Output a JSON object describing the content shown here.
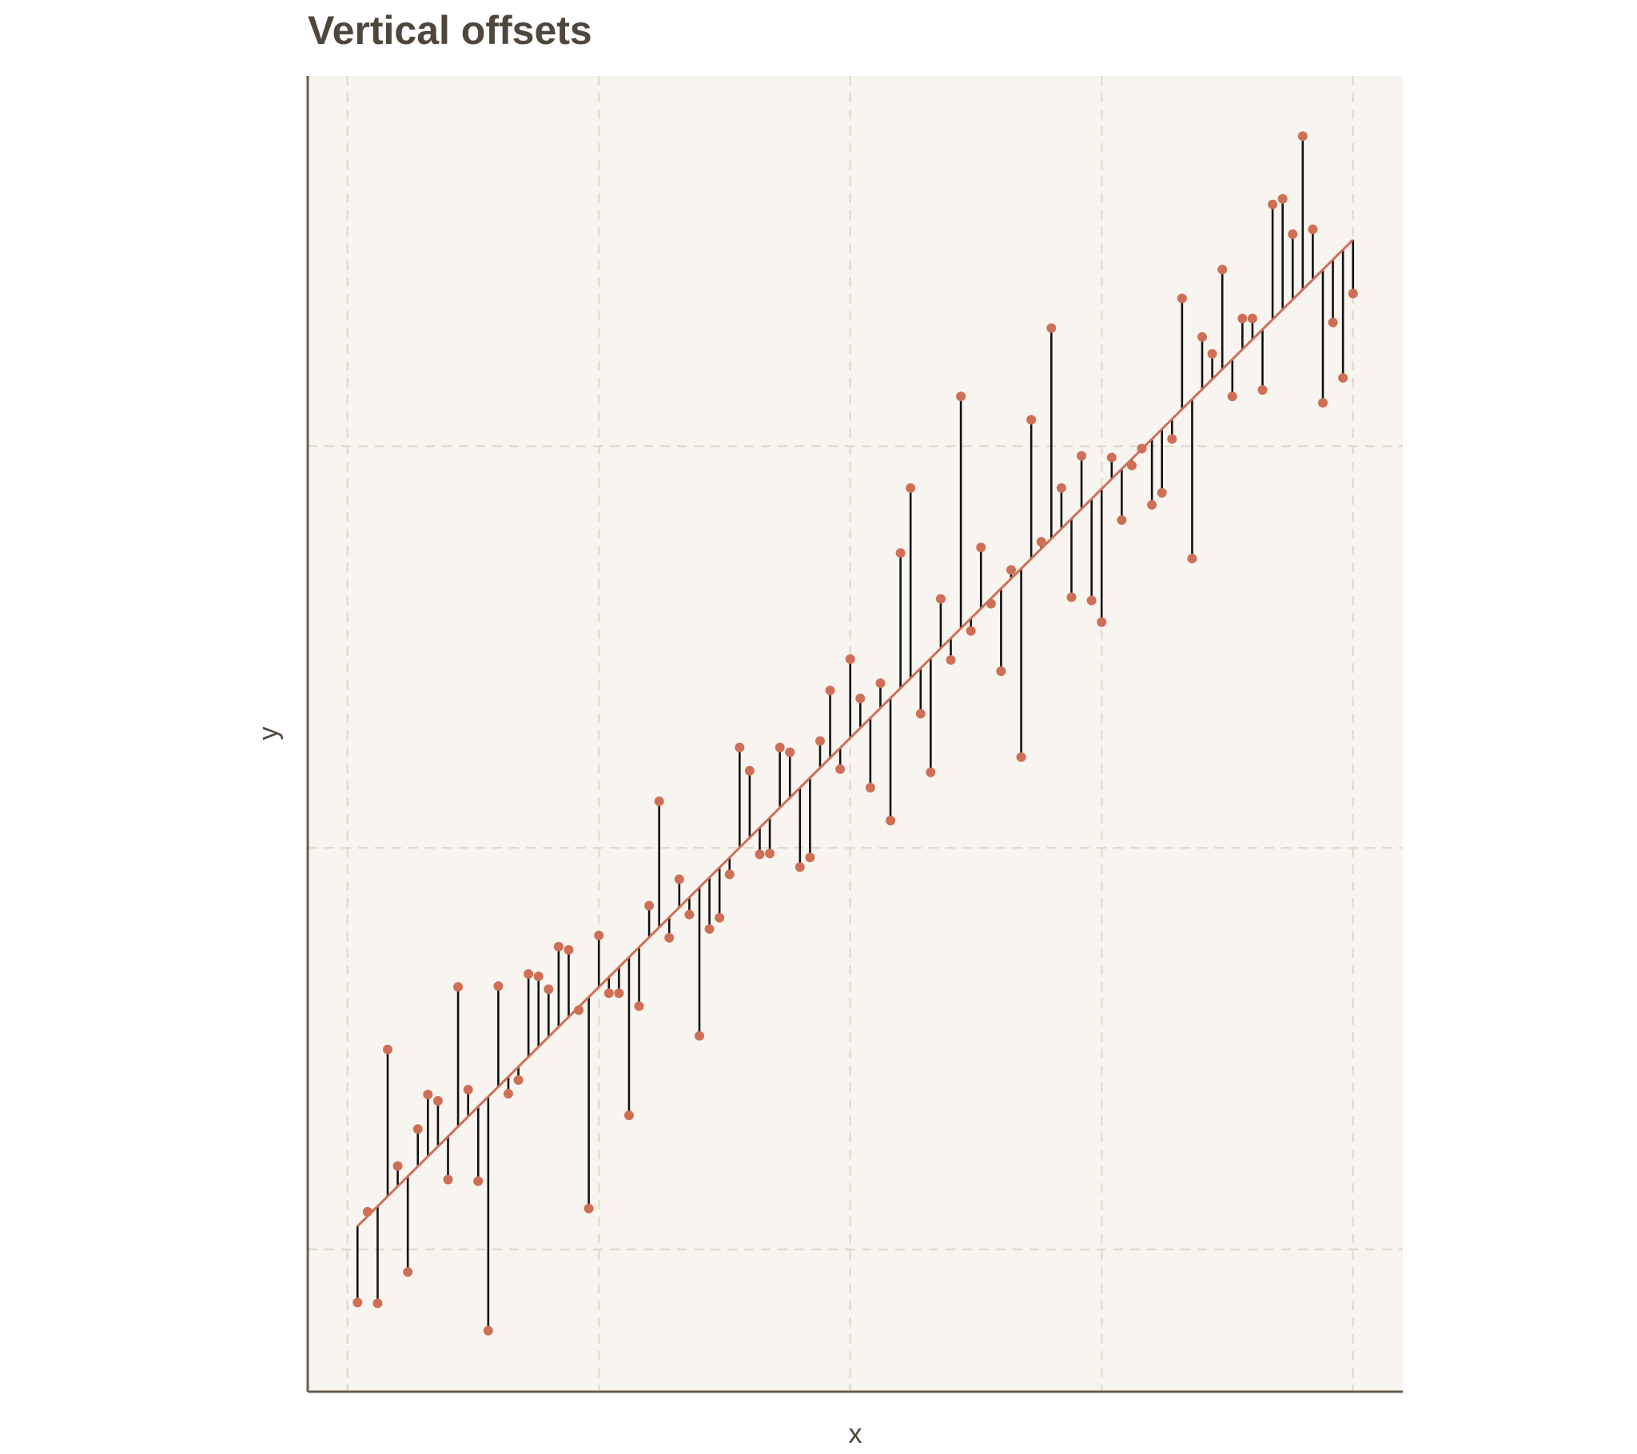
{
  "chart_data": {
    "type": "scatter",
    "title": "Vertical offsets",
    "xlabel": "x",
    "ylabel": "y",
    "x": [
      1,
      2,
      3,
      4,
      5,
      6,
      7,
      8,
      9,
      10,
      11,
      12,
      13,
      14,
      15,
      16,
      17,
      18,
      19,
      20,
      21,
      22,
      23,
      24,
      25,
      26,
      27,
      28,
      29,
      30,
      31,
      32,
      33,
      34,
      35,
      36,
      37,
      38,
      39,
      40,
      41,
      42,
      43,
      44,
      45,
      46,
      47,
      48,
      49,
      50,
      51,
      52,
      53,
      54,
      55,
      56,
      57,
      58,
      59,
      60,
      61,
      62,
      63,
      64,
      65,
      66,
      67,
      68,
      69,
      70,
      71,
      72,
      73,
      74,
      75,
      76,
      77,
      78,
      79,
      80,
      81,
      82,
      83,
      84,
      85,
      86,
      87,
      88,
      89,
      90,
      91,
      92,
      93,
      94,
      95,
      96,
      97,
      98,
      99,
      100
    ],
    "values": [
      -6.6,
      4.7,
      -6.7,
      24.9,
      10.4,
      -2.8,
      15.0,
      19.3,
      18.5,
      8.7,
      32.7,
      19.9,
      8.5,
      -10.1,
      32.8,
      19.4,
      21.1,
      34.3,
      34.0,
      32.4,
      37.7,
      37.3,
      29.8,
      5.1,
      39.1,
      31.9,
      31.9,
      16.7,
      30.3,
      42.8,
      55.8,
      38.8,
      46.1,
      41.7,
      26.6,
      39.9,
      41.3,
      46.7,
      62.5,
      59.6,
      49.2,
      49.3,
      62.5,
      61.9,
      47.6,
      48.8,
      63.3,
      69.6,
      59.8,
      73.5,
      68.6,
      57.5,
      70.5,
      53.4,
      86.7,
      94.8,
      66.7,
      59.4,
      81.0,
      73.4,
      106.2,
      77.0,
      87.4,
      80.4,
      72.0,
      84.6,
      61.3,
      103.3,
      88.1,
      114.7,
      94.8,
      81.2,
      98.8,
      80.8,
      78.1,
      98.6,
      90.8,
      97.6,
      99.7,
      92.7,
      94.2,
      100.9,
      118.4,
      86.0,
      113.6,
      111.5,
      122.0,
      106.2,
      115.9,
      115.9,
      107.0,
      130.1,
      130.8,
      126.4,
      138.6,
      127.0,
      105.4,
      115.4,
      108.5,
      119.0
    ],
    "color": "#cf6f55",
    "fit": {
      "intercept": 1.66,
      "slope": 1.2404,
      "color": "#cf6f55"
    },
    "segment_color": "#111111",
    "xlim": [
      -3.95,
      104.95
    ],
    "ylim": [
      -17.7,
      146.1
    ],
    "xticks": [
      0,
      25,
      50,
      75,
      100
    ],
    "yticks": [
      0,
      50,
      100
    ],
    "grid": true
  }
}
